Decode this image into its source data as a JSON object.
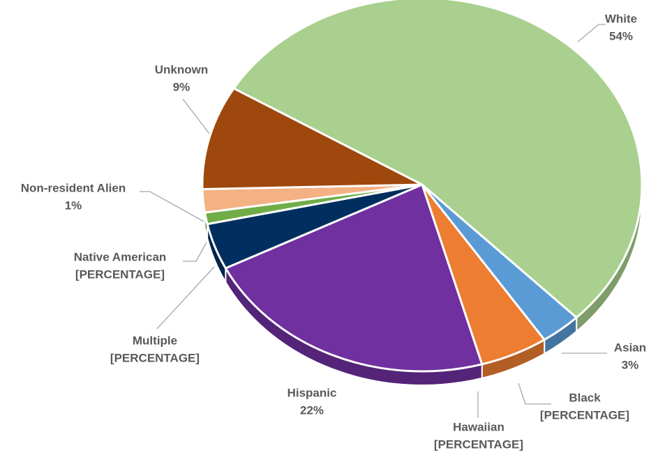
{
  "chart_data": {
    "type": "pie",
    "categories": [
      "White",
      "Asian",
      "Black",
      "Hawaiian",
      "Hispanic",
      "Multiple",
      "Native American",
      "Non-resident Alien",
      null,
      "Unknown"
    ],
    "values": [
      54,
      3,
      5,
      0,
      22,
      4,
      0,
      1,
      2,
      9
    ],
    "value_labels": [
      "54%",
      "3%",
      "[PERCENTAGE]",
      "[PERCENTAGE]",
      "22%",
      "[PERCENTAGE]",
      "[PERCENTAGE]",
      "1%",
      null,
      "9%"
    ],
    "colors": [
      "#a9d08e",
      "#5b9bd5",
      "#ed7d31",
      "#ffc000",
      "#7030a0",
      "#002f5f",
      "#4472c4",
      "#70ad47",
      "#f4b183",
      "#9e480e"
    ]
  }
}
